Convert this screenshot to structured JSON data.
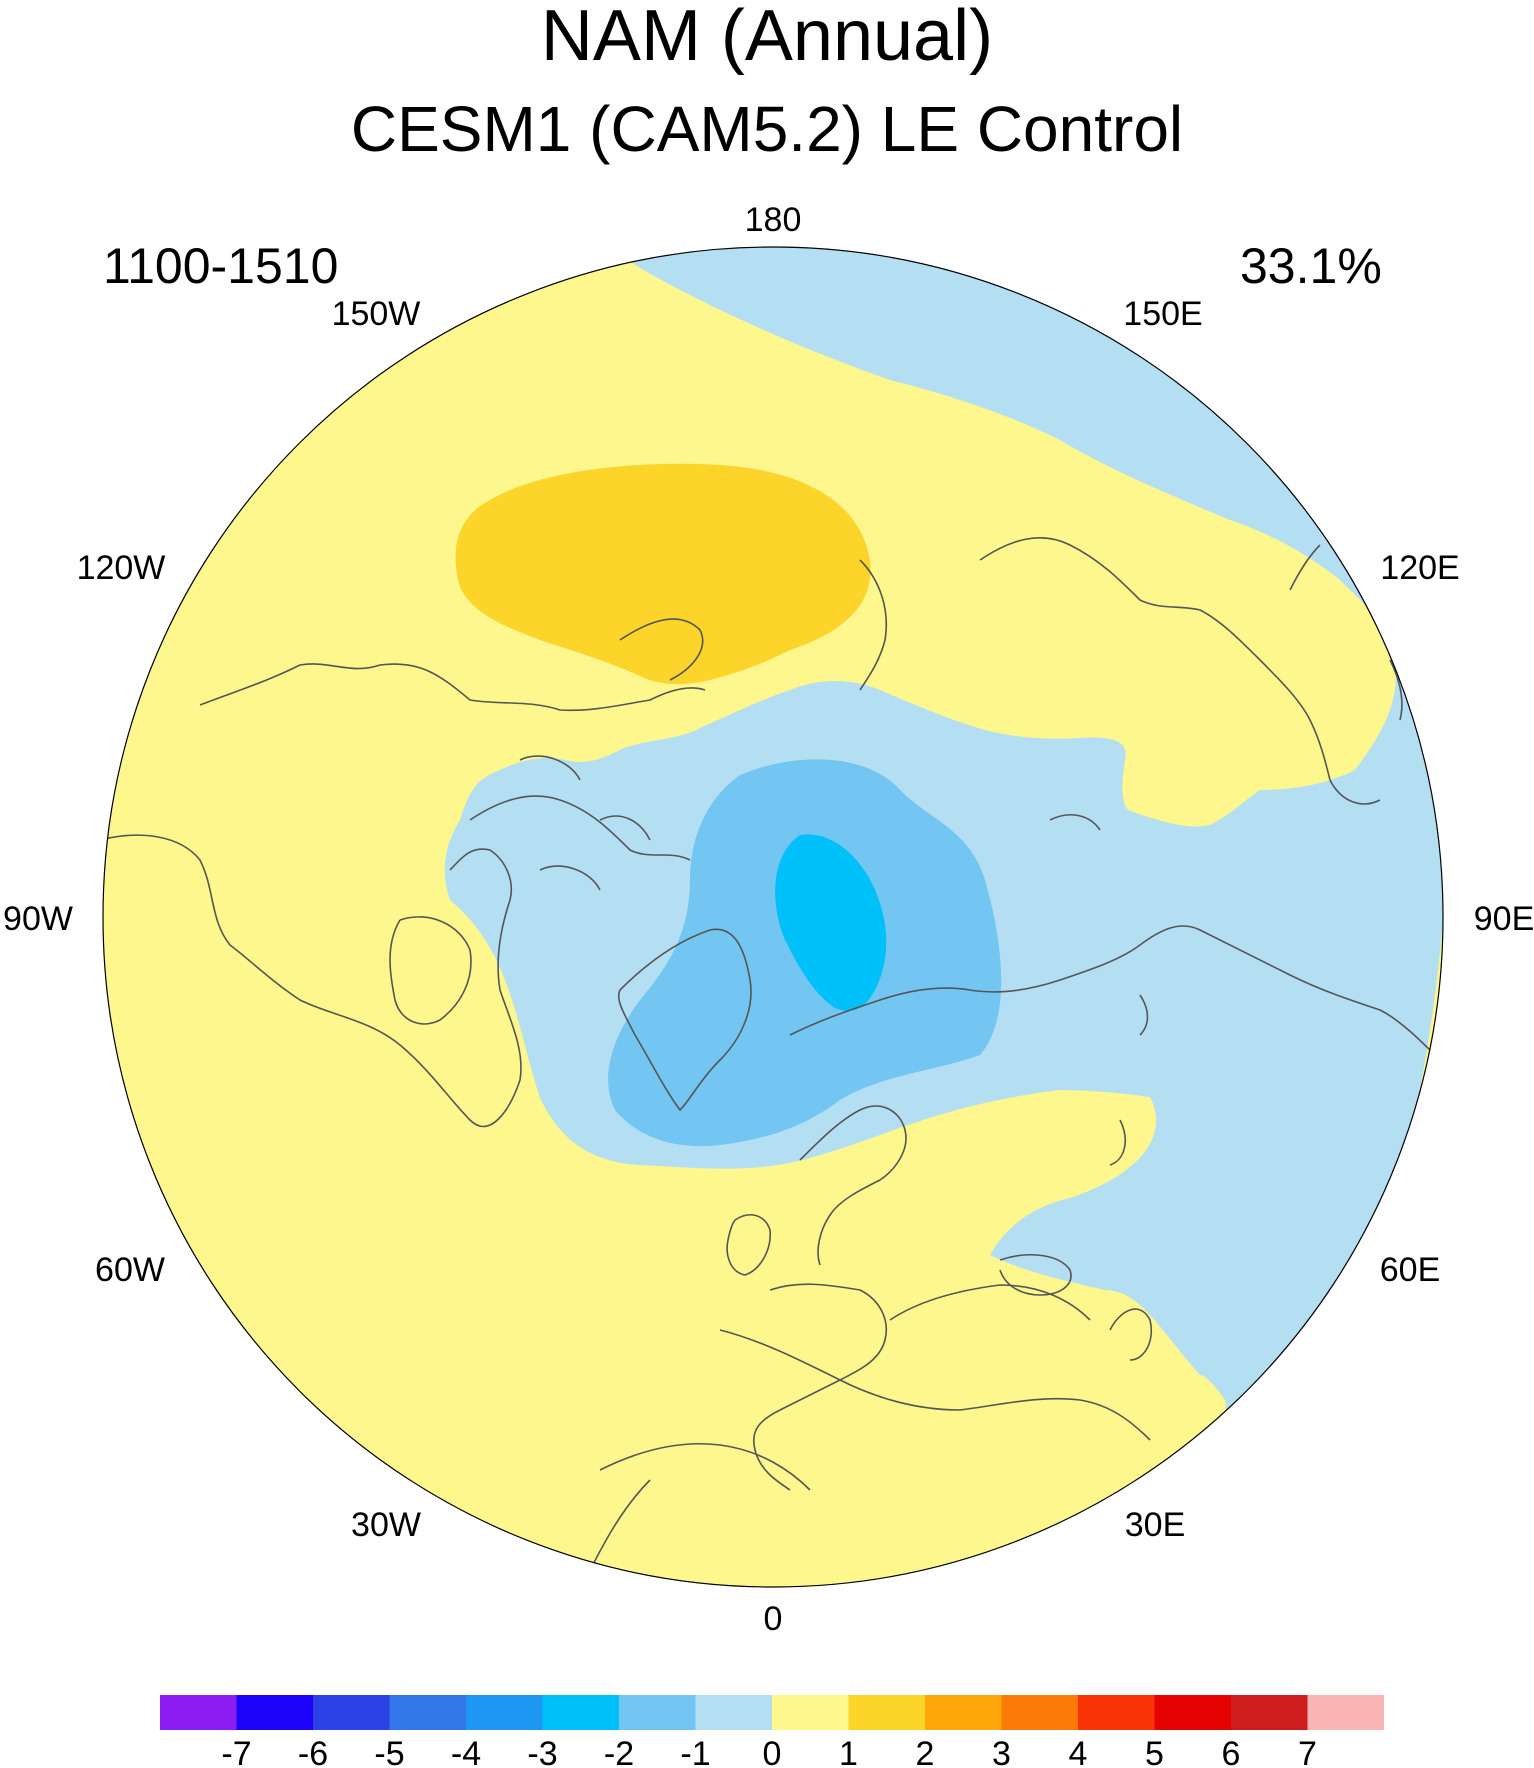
{
  "title": "NAM (Annual)",
  "subtitle": "CESM1 (CAM5.2) LE Control",
  "period": "1100-1510",
  "variance_explained": "33.1%",
  "map": {
    "projection": "north polar stereographic",
    "center_meridian_bottom": "0",
    "longitude_labels": [
      "180",
      "150E",
      "120E",
      "90E",
      "60E",
      "30E",
      "0",
      "30W",
      "60W",
      "90W",
      "120W",
      "150W"
    ]
  },
  "colorbar": {
    "labels": [
      "-7",
      "-6",
      "-5",
      "-4",
      "-3",
      "-2",
      "-1",
      "0",
      "1",
      "2",
      "3",
      "4",
      "5",
      "6",
      "7"
    ],
    "colors": [
      "#8b1cf2",
      "#1c02f8",
      "#2c42e4",
      "#3277e9",
      "#1e97f2",
      "#00c0fa",
      "#73c6f2",
      "#b4def2",
      "#fdf78e",
      "#fdd42a",
      "#fda808",
      "#fc7a08",
      "#fb3408",
      "#e70202",
      "#cf1c1c",
      "#fbb4b4"
    ]
  },
  "chart_data": {
    "type": "heatmap",
    "title": "NAM (Annual)",
    "subtitle": "CESM1 (CAM5.2) LE Control",
    "period": "1100-1510",
    "variance_explained": "33.1%",
    "contour_levels": [
      -7,
      -6,
      -5,
      -4,
      -3,
      -2,
      -1,
      0,
      1,
      2,
      3,
      4,
      5,
      6,
      7
    ],
    "features": [
      {
        "region": "central Arctic / Greenland",
        "value_range": [
          -3,
          -2
        ]
      },
      {
        "region": "Arctic, North Atlantic, Siberia, NW Pacific",
        "value_range": [
          -2,
          -1
        ]
      },
      {
        "region": "North Pacific (Aleutian)",
        "value_range": [
          1,
          2
        ]
      },
      {
        "region": "mid-latitudes",
        "value_range": [
          0,
          1
        ]
      }
    ]
  }
}
